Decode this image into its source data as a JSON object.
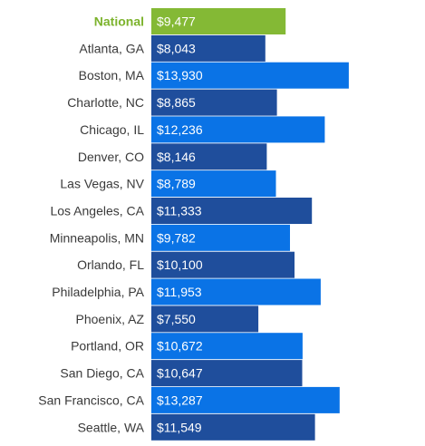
{
  "chart_data": {
    "type": "bar",
    "orientation": "horizontal",
    "categories": [
      "National",
      "Atlanta, GA",
      "Boston, MA",
      "Charlotte, NC",
      "Chicago, IL",
      "Denver, CO",
      "Las Vegas, NV",
      "Los Angeles, CA",
      "Minneapolis, MN",
      "Orlando, FL",
      "Philadelphia, PA",
      "Phoenix, AZ",
      "Portland, OR",
      "San Diego, CA",
      "San Francisco, CA",
      "Seattle, WA"
    ],
    "values": [
      9477,
      8043,
      13930,
      8865,
      12236,
      8146,
      8789,
      11333,
      9782,
      10100,
      11953,
      7550,
      10672,
      10647,
      13287,
      11549
    ],
    "value_labels": [
      "$9,477",
      "$8,043",
      "$13,930",
      "$8,865",
      "$12,236",
      "$8,146",
      "$8,789",
      "$11,333",
      "$9,782",
      "$10,100",
      "$11,953",
      "$7,550",
      "$10,672",
      "$10,647",
      "$13,287",
      "$11,549"
    ],
    "bar_colors": [
      "#84b935",
      "#1f4e9c",
      "#0a73e6",
      "#1f4e9c",
      "#0a73e6",
      "#1f4e9c",
      "#0a73e6",
      "#1f4e9c",
      "#0a73e6",
      "#1f4e9c",
      "#0a73e6",
      "#1f4e9c",
      "#0a73e6",
      "#1f4e9c",
      "#0a73e6",
      "#1f4e9c"
    ],
    "highlight_label_color": "#7cb32c",
    "label_color": "#3a3a3a",
    "value_label_color": "#ffffff",
    "grid": false,
    "legend": "none"
  }
}
